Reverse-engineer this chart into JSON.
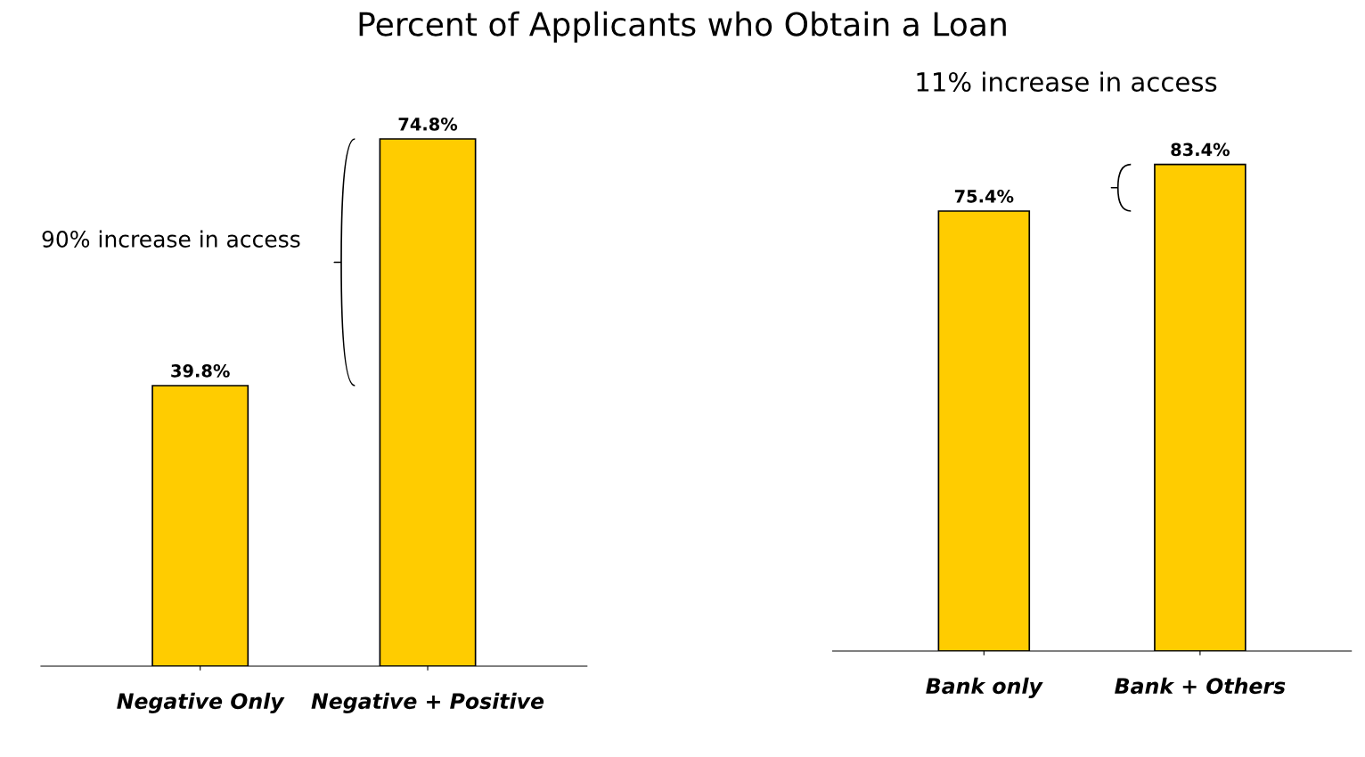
{
  "chart_data": [
    {
      "type": "bar",
      "title": "Percent of Applicants who Obtain a Loan",
      "categories": [
        "Negative Only",
        "Negative + Positive"
      ],
      "values": [
        39.8,
        74.8
      ],
      "color": "#ffcc00",
      "value_labels": [
        "39.8%",
        "74.8%"
      ],
      "annotations": [
        "90% increase in access"
      ],
      "grid": false,
      "legend": false,
      "tick_labels": "x"
    },
    {
      "type": "bar",
      "categories": [
        "Bank only",
        "Bank + Others"
      ],
      "values": [
        75.4,
        83.4
      ],
      "color": "#ffcc00",
      "value_labels": [
        "75.4%",
        "83.4%"
      ],
      "annotations": [
        "11% increase in access"
      ],
      "grid": false,
      "legend": false,
      "tick_labels": "x"
    }
  ]
}
